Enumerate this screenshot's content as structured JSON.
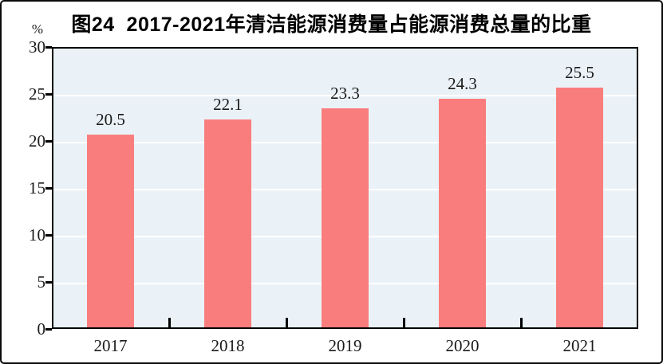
{
  "chart_data": {
    "type": "bar",
    "title": "图24  2017-2021年清洁能源消费量占能源消费总量的比重",
    "unit_label": "%",
    "categories": [
      "2017",
      "2018",
      "2019",
      "2020",
      "2021"
    ],
    "values": [
      20.5,
      22.1,
      23.3,
      24.3,
      25.5
    ],
    "data_labels": [
      "20.5",
      "22.1",
      "23.3",
      "24.3",
      "25.5"
    ],
    "xlabel": "",
    "ylabel": "%",
    "ylim": [
      0,
      30
    ],
    "yticks": [
      0,
      5,
      10,
      15,
      20,
      25,
      30
    ],
    "grid": true,
    "legend": "none",
    "colors": {
      "bar": "#FA7D7D",
      "plot_background": "#EAF2F7",
      "gridline": "#FFFFFF",
      "axis": "#000000",
      "text": "#1A1A1A",
      "frame_border": "#0A0A0A"
    }
  }
}
